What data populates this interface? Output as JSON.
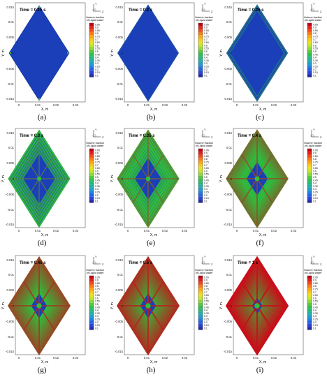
{
  "figure": {
    "axes": {
      "xlabel": "X, m",
      "ylabel": "Y, m",
      "xticks": [
        "0",
        "0.01",
        "0.02",
        "0.03"
      ],
      "yticks": [
        "0.015",
        "0.01",
        "0.005",
        "0",
        "-0.005",
        "-0.01",
        "-0.015"
      ]
    },
    "legend": {
      "title_line1": "Volume fraction",
      "title_line2": "of Liquid water",
      "levels": [
        "0.95",
        "0.9",
        "0.85",
        "0.8",
        "0.75",
        "0.7",
        "0.65",
        "0.6",
        "0.55",
        "0.5",
        "0.45",
        "0.4",
        "0.35",
        "0.3",
        "0.25",
        "0.2",
        "0.15",
        "0.1"
      ]
    },
    "triad": {
      "y": "Y",
      "z": "Z"
    },
    "colors": {
      "low": "#1a3fb8",
      "mid": "#2fbf3a",
      "high": "#c80f1a"
    },
    "panels": [
      {
        "id": "a",
        "caption": "(a)",
        "time": "Time = 0.15 s",
        "wet": 0.0
      },
      {
        "id": "b",
        "caption": "(b)",
        "time": "Time = 0.2 s",
        "wet": 0.05
      },
      {
        "id": "c",
        "caption": "(c)",
        "time": "Time = 0.25 s",
        "wet": 0.2
      },
      {
        "id": "d",
        "caption": "(d)",
        "time": "Time = 0.3 s",
        "wet": 0.5
      },
      {
        "id": "e",
        "caption": "(e)",
        "time": "Time = 0.35 s",
        "wet": 0.62
      },
      {
        "id": "f",
        "caption": "(f)",
        "time": "Time = 0.4 s",
        "wet": 0.7
      },
      {
        "id": "g",
        "caption": "(g)",
        "time": "Time = 0.45 s",
        "wet": 0.78
      },
      {
        "id": "h",
        "caption": "(h)",
        "time": "Time = 0.5 s",
        "wet": 0.84
      },
      {
        "id": "i",
        "caption": "(i)",
        "time": "Time = 1 s",
        "wet": 0.92
      }
    ]
  }
}
